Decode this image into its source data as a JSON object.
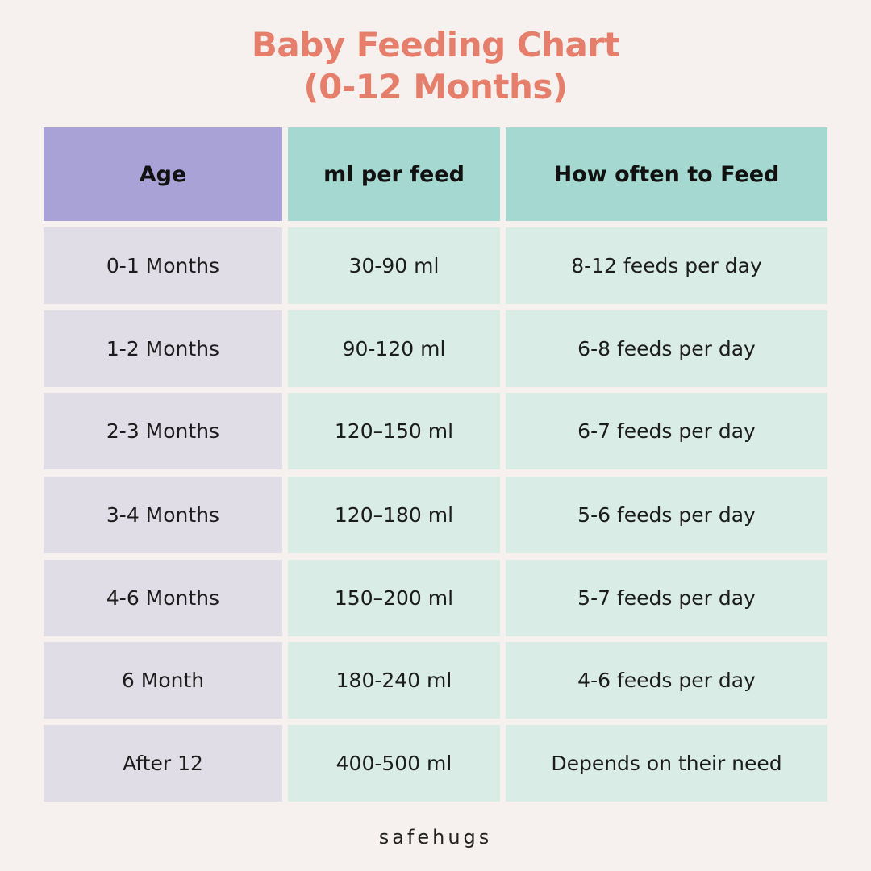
{
  "title": {
    "line1": "Baby Feeding Chart",
    "line2": "(0-12 Months)"
  },
  "table": {
    "headers": [
      "Age",
      "ml per feed",
      "How often to Feed"
    ],
    "rows": [
      [
        "0-1 Months",
        "30-90 ml",
        "8-12 feeds per day"
      ],
      [
        "1-2 Months",
        "90-120 ml",
        "6-8 feeds per day"
      ],
      [
        "2-3 Months",
        "120–150 ml",
        "6-7 feeds per day"
      ],
      [
        "3-4 Months",
        "120–180 ml",
        "5-6 feeds per day"
      ],
      [
        "4-6 Months",
        "150–200 ml",
        "5-7 feeds per day"
      ],
      [
        "6 Month",
        "180-240 ml",
        "4-6 feeds per day"
      ],
      [
        "After 12",
        "400-500 ml",
        "Depends on their need"
      ]
    ]
  },
  "footer": {
    "brand": "safehugs"
  },
  "colors": {
    "title": "#e57f6c",
    "header_age": "#a9a2d6",
    "header_other": "#a4d8d0",
    "cell_age": "#e1dde6",
    "cell_other": "#d9ede6",
    "background": "#f6f1ee"
  }
}
